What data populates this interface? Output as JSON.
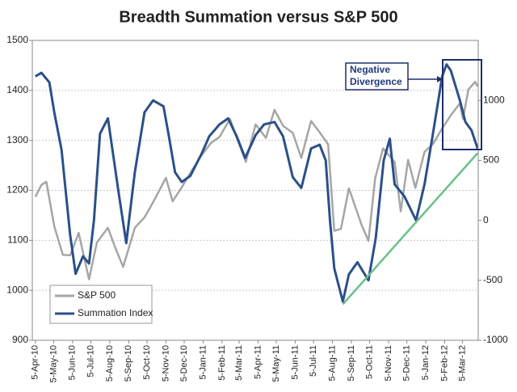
{
  "chart_data": {
    "type": "line",
    "title": "Breadth Summation versus S&P 500",
    "xlim": [
      "2010-03-31",
      "2012-03-31"
    ],
    "xticks": [
      {
        "value": "2010-04-05",
        "label": "5-Apr-10"
      },
      {
        "value": "2010-05-05",
        "label": "5-May-10"
      },
      {
        "value": "2010-06-05",
        "label": "5-Jun-10"
      },
      {
        "value": "2010-07-05",
        "label": "5-Jul-10"
      },
      {
        "value": "2010-08-05",
        "label": "5-Aug-10"
      },
      {
        "value": "2010-09-05",
        "label": "5-Sep-10"
      },
      {
        "value": "2010-10-05",
        "label": "5-Oct-10"
      },
      {
        "value": "2010-11-05",
        "label": "5-Nov-10"
      },
      {
        "value": "2010-12-05",
        "label": "5-Dec-10"
      },
      {
        "value": "2011-01-05",
        "label": "5-Jan-11"
      },
      {
        "value": "2011-02-05",
        "label": "5-Feb-11"
      },
      {
        "value": "2011-03-05",
        "label": "5-Mar-11"
      },
      {
        "value": "2011-04-05",
        "label": "5-Apr-11"
      },
      {
        "value": "2011-05-05",
        "label": "5-May-11"
      },
      {
        "value": "2011-06-05",
        "label": "5-Jun-11"
      },
      {
        "value": "2011-07-05",
        "label": "5-Jul-11"
      },
      {
        "value": "2011-08-05",
        "label": "5-Aug-11"
      },
      {
        "value": "2011-09-05",
        "label": "5-Sep-11"
      },
      {
        "value": "2011-10-05",
        "label": "5-Oct-11"
      },
      {
        "value": "2011-11-05",
        "label": "5-Nov-11"
      },
      {
        "value": "2011-12-05",
        "label": "5-Dec-11"
      },
      {
        "value": "2012-01-05",
        "label": "5-Jan-12"
      },
      {
        "value": "2012-02-05",
        "label": "5-Feb-12"
      },
      {
        "value": "2012-03-05",
        "label": "5-Mar-12"
      }
    ],
    "ylim": [
      900,
      1500
    ],
    "yticks": [
      900,
      1000,
      1100,
      1200,
      1300,
      1400,
      1500
    ],
    "y2lim": [
      -1000,
      1500
    ],
    "y2ticks": [
      -1000,
      -500,
      0,
      500,
      1000
    ],
    "grid": true,
    "series": [
      {
        "name": "S&P 500",
        "color": "#a6a6a6",
        "x": [
          "2010-04-05",
          "2010-04-15",
          "2010-04-23",
          "2010-05-06",
          "2010-05-20",
          "2010-06-01",
          "2010-06-15",
          "2010-07-02",
          "2010-07-15",
          "2010-08-02",
          "2010-08-16",
          "2010-08-27",
          "2010-09-15",
          "2010-10-01",
          "2010-10-15",
          "2010-11-05",
          "2010-11-16",
          "2010-12-01",
          "2010-12-15",
          "2011-01-03",
          "2011-01-18",
          "2011-02-01",
          "2011-02-18",
          "2011-03-01",
          "2011-03-16",
          "2011-04-01",
          "2011-04-18",
          "2011-05-02",
          "2011-05-16",
          "2011-06-01",
          "2011-06-15",
          "2011-07-01",
          "2011-07-15",
          "2011-07-29",
          "2011-08-08",
          "2011-08-19",
          "2011-09-01",
          "2011-09-22",
          "2011-10-03",
          "2011-10-14",
          "2011-10-27",
          "2011-11-15",
          "2011-11-25",
          "2011-12-07",
          "2011-12-19",
          "2012-01-03",
          "2012-01-17",
          "2012-02-01",
          "2012-02-15",
          "2012-03-01",
          "2012-03-06",
          "2012-03-15",
          "2012-03-26",
          "2012-03-30"
        ],
        "values": [
          1187,
          1211,
          1217,
          1128,
          1071,
          1070,
          1115,
          1022,
          1096,
          1125,
          1079,
          1047,
          1125,
          1146,
          1176,
          1225,
          1178,
          1206,
          1235,
          1271,
          1295,
          1307,
          1343,
          1306,
          1257,
          1332,
          1305,
          1361,
          1329,
          1315,
          1265,
          1339,
          1316,
          1292,
          1119,
          1123,
          1204,
          1130,
          1099,
          1224,
          1284,
          1257,
          1158,
          1261,
          1205,
          1277,
          1293,
          1324,
          1350,
          1374,
          1343,
          1402,
          1417,
          1408
        ]
      },
      {
        "name": "Summation Index",
        "color": "#2b5089",
        "axis": "y2",
        "x": [
          "2010-04-05",
          "2010-04-15",
          "2010-04-28",
          "2010-05-06",
          "2010-05-18",
          "2010-06-01",
          "2010-06-10",
          "2010-06-22",
          "2010-07-02",
          "2010-07-10",
          "2010-07-20",
          "2010-08-02",
          "2010-08-20",
          "2010-09-01",
          "2010-09-15",
          "2010-10-01",
          "2010-10-15",
          "2010-11-01",
          "2010-11-10",
          "2010-11-20",
          "2010-12-01",
          "2010-12-15",
          "2011-01-03",
          "2011-01-15",
          "2011-02-01",
          "2011-02-15",
          "2011-03-01",
          "2011-03-15",
          "2011-04-01",
          "2011-04-15",
          "2011-05-02",
          "2011-05-16",
          "2011-06-01",
          "2011-06-15",
          "2011-07-01",
          "2011-07-15",
          "2011-07-25",
          "2011-08-01",
          "2011-08-08",
          "2011-08-22",
          "2011-09-01",
          "2011-09-15",
          "2011-10-03",
          "2011-10-15",
          "2011-10-28",
          "2011-11-07",
          "2011-11-15",
          "2011-12-01",
          "2011-12-20",
          "2012-01-03",
          "2012-01-16",
          "2012-02-01",
          "2012-02-08",
          "2012-02-15",
          "2012-03-01",
          "2012-03-10",
          "2012-03-20",
          "2012-03-30"
        ],
        "values": [
          1200,
          1230,
          1150,
          900,
          587,
          -120,
          -446,
          -300,
          -360,
          0,
          723,
          850,
          215,
          -190,
          400,
          900,
          1000,
          950,
          700,
          400,
          320,
          370,
          560,
          700,
          800,
          850,
          700,
          520,
          710,
          800,
          820,
          700,
          360,
          270,
          600,
          630,
          500,
          0,
          -400,
          -677,
          -450,
          -350,
          -500,
          -150,
          500,
          680,
          300,
          200,
          0,
          300,
          700,
          1200,
          1300,
          1250,
          1000,
          820,
          750,
          600
        ]
      }
    ],
    "trendline": {
      "color": "#6cc08b",
      "axis": "y2",
      "x": [
        "2011-08-22",
        "2012-03-30"
      ],
      "values": [
        -700,
        560
      ]
    },
    "annotation": [
      "Negative",
      "Divergence"
    ]
  }
}
